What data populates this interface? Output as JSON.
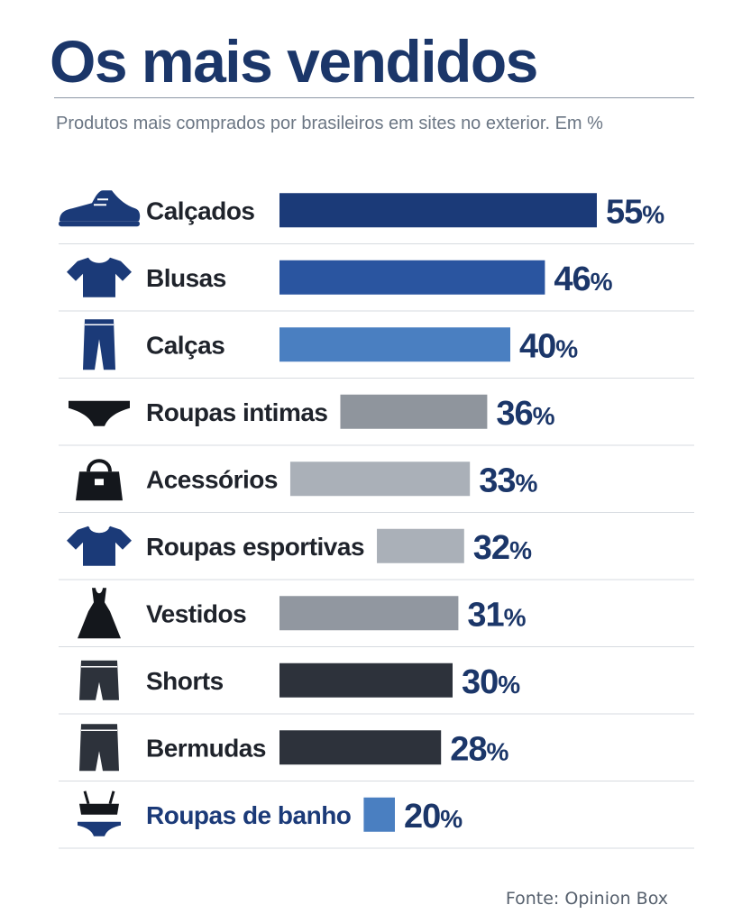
{
  "title": "Os mais vendidos",
  "subtitle": "Produtos mais comprados por brasileiros em sites no exterior. Em %",
  "source": "Fonte: Opinion Box",
  "chart_data": {
    "type": "bar",
    "orientation": "horizontal",
    "unit": "%",
    "categories": [
      "Calçados",
      "Blusas",
      "Calças",
      "Roupas intimas",
      "Acessórios",
      "Roupas esportivas",
      "Vestidos",
      "Shorts",
      "Bermudas",
      "Roupas de banho"
    ],
    "values": [
      55,
      46,
      40,
      36,
      33,
      32,
      31,
      30,
      28,
      20
    ],
    "bar_colors": [
      "#1b3a78",
      "#2a55a0",
      "#4a7fc1",
      "#8f959d",
      "#aab0b8",
      "#aab0b8",
      "#9197a0",
      "#2d323b",
      "#2d323b",
      "#4a7fc1"
    ],
    "label_color": "#1b3669",
    "icons": [
      "shoe-icon",
      "tshirt-icon",
      "pants-icon",
      "underwear-icon",
      "handbag-icon",
      "sport-shirt-icon",
      "dress-icon",
      "shorts-icon",
      "bermuda-icon",
      "swimsuit-icon"
    ],
    "icon_colors": [
      "#1b3a78",
      "#1b3a78",
      "#1b3a78",
      "#14171c",
      "#14171c",
      "#1b3a78",
      "#14171c",
      "#2d323b",
      "#2d323b",
      "#14171c"
    ]
  }
}
